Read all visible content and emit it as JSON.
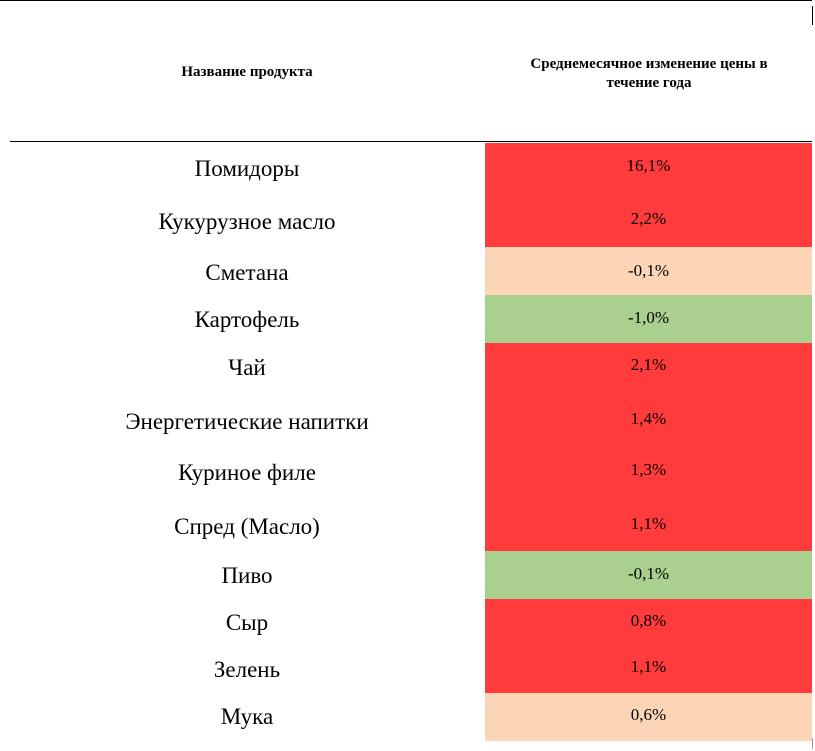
{
  "table": {
    "header": {
      "name": "Название продукта",
      "change_line1": "Среднемесячное изменение цены в",
      "change_line2": "течение года"
    },
    "colors": {
      "increase": "#ff3b3b",
      "slight": "#fbd5b5",
      "decrease": "#a9d08e"
    },
    "rows": [
      {
        "name": "Помидоры",
        "value": "16,1%",
        "color": "#ff3b3b"
      },
      {
        "name": "Кукурузное масло",
        "value": "2,2%",
        "color": "#ff3b3b"
      },
      {
        "name": "Сметана",
        "value": "-0,1%",
        "color": "#fbd5b5"
      },
      {
        "name": "Картофель",
        "value": "-1,0%",
        "color": "#a9d08e"
      },
      {
        "name": "Чай",
        "value": "2,1%",
        "color": "#ff3b3b"
      },
      {
        "name": "Энергетические напитки",
        "value": "1,4%",
        "color": "#ff3b3b"
      },
      {
        "name": "Куриное филе",
        "value": "1,3%",
        "color": "#ff3b3b"
      },
      {
        "name": "Спред (Масло)",
        "value": "1,1%",
        "color": "#ff3b3b"
      },
      {
        "name": "Пиво",
        "value": "-0,1%",
        "color": "#a9d08e"
      },
      {
        "name": "Сыр",
        "value": "0,8%",
        "color": "#ff3b3b"
      },
      {
        "name": "Зелень",
        "value": "1,1%",
        "color": "#ff3b3b"
      },
      {
        "name": "Мука",
        "value": "0,6%",
        "color": "#fbd5b5"
      }
    ]
  }
}
